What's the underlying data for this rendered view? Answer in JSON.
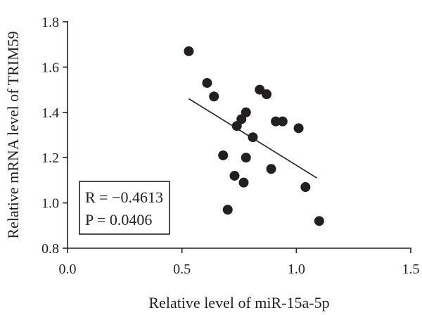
{
  "chart_data": {
    "type": "scatter",
    "title": "",
    "xlabel": "Relative level of miR-15a-5p",
    "ylabel": "Relative mRNA level of TRIM59",
    "xlim": [
      0.0,
      1.5
    ],
    "ylim": [
      0.8,
      1.8
    ],
    "xticks": [
      {
        "value": 0.0,
        "label": "0.0"
      },
      {
        "value": 0.5,
        "label": "0.5"
      },
      {
        "value": 1.0,
        "label": "1.0"
      },
      {
        "value": 1.5,
        "label": "1.5"
      }
    ],
    "yticks": [
      {
        "value": 0.8,
        "label": "0.8"
      },
      {
        "value": 1.0,
        "label": "1.0"
      },
      {
        "value": 1.2,
        "label": "1.2"
      },
      {
        "value": 1.4,
        "label": "1.4"
      },
      {
        "value": 1.6,
        "label": "1.6"
      },
      {
        "value": 1.8,
        "label": "1.8"
      }
    ],
    "points": [
      {
        "x": 0.53,
        "y": 1.67
      },
      {
        "x": 0.61,
        "y": 1.53
      },
      {
        "x": 0.64,
        "y": 1.47
      },
      {
        "x": 0.84,
        "y": 1.5
      },
      {
        "x": 0.87,
        "y": 1.48
      },
      {
        "x": 0.78,
        "y": 1.4
      },
      {
        "x": 0.76,
        "y": 1.37
      },
      {
        "x": 0.74,
        "y": 1.34
      },
      {
        "x": 0.91,
        "y": 1.36
      },
      {
        "x": 0.94,
        "y": 1.36
      },
      {
        "x": 1.01,
        "y": 1.33
      },
      {
        "x": 0.81,
        "y": 1.29
      },
      {
        "x": 0.68,
        "y": 1.21
      },
      {
        "x": 0.78,
        "y": 1.2
      },
      {
        "x": 0.89,
        "y": 1.15
      },
      {
        "x": 0.73,
        "y": 1.12
      },
      {
        "x": 0.77,
        "y": 1.09
      },
      {
        "x": 1.04,
        "y": 1.07
      },
      {
        "x": 0.7,
        "y": 0.97
      },
      {
        "x": 1.1,
        "y": 0.92
      }
    ],
    "fit_line": {
      "x": [
        0.53,
        1.09
      ],
      "y": [
        1.46,
        1.11
      ]
    },
    "annotation": {
      "r_text": "R = −0.4613",
      "p_text": "P = 0.0406"
    },
    "point_color": "#231f20",
    "axis_color": "#231f20",
    "grid": false
  }
}
